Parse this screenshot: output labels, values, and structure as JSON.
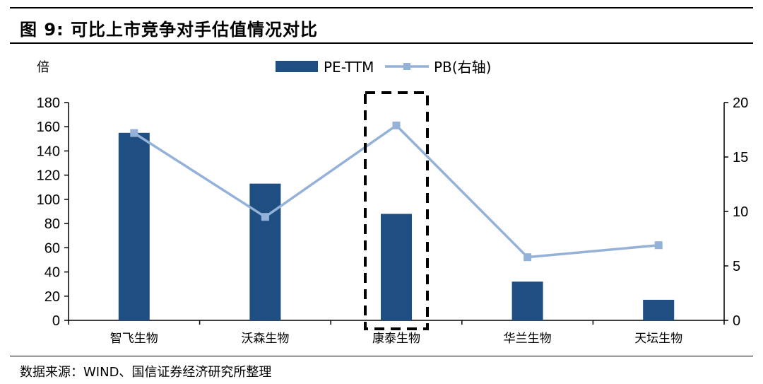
{
  "figure_title": "图 9:  可比上市竞争对手估值情况对比",
  "source": "数据来源：WIND、国信证券经济研究所整理",
  "colors": {
    "bar": "#1f4e82",
    "line": "#94b2d8",
    "axis": "#000000",
    "highlight_box": "#000000"
  },
  "chart_data": {
    "type": "bar",
    "title": "",
    "ylabel": "倍",
    "ylim": [
      0,
      180
    ],
    "yticks": [
      0,
      20,
      40,
      60,
      80,
      100,
      120,
      140,
      160,
      180
    ],
    "y2lim": [
      0,
      20
    ],
    "y2ticks": [
      0,
      5,
      10,
      15,
      20
    ],
    "categories": [
      "智飞生物",
      "沃森生物",
      "康泰生物",
      "华兰生物",
      "天坛生物"
    ],
    "series": [
      {
        "name": "PE-TTM",
        "type": "bar",
        "axis": "left",
        "values": [
          155,
          113,
          88,
          32,
          17
        ]
      },
      {
        "name": "PB(右轴)",
        "type": "line",
        "axis": "right",
        "values": [
          17.2,
          9.5,
          17.9,
          5.8,
          6.9
        ]
      }
    ],
    "legend_position": "top-center",
    "grid": false,
    "highlighted_category": "康泰生物"
  }
}
